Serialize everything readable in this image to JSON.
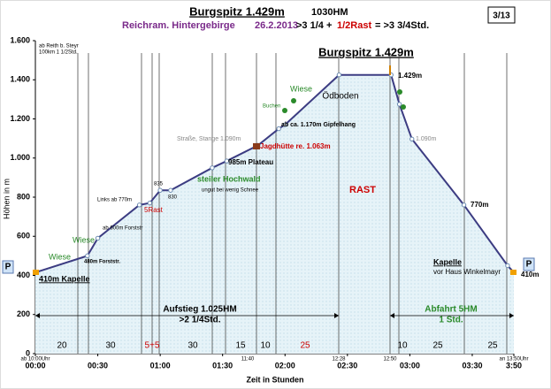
{
  "chart_data": {
    "type": "area",
    "header": {
      "title": "Burgspitz 1.429m",
      "hm": "1030HM",
      "region": "Reichram. Hintergebirge",
      "date": "26.2.2013",
      "time_a": ">3 1/4 +",
      "time_rest": "1/2Rast",
      "time_b": "= >3 3/4Std.",
      "page": "3/13"
    },
    "title": "Burgspitz 1.429m",
    "y_label": "Höhen in m",
    "x_label": "Zeit in Stunden",
    "x": [
      0,
      25,
      30,
      50,
      55,
      60,
      65,
      85,
      92,
      107,
      117,
      120,
      146,
      171,
      175,
      181,
      206,
      227,
      230
    ],
    "values": [
      415,
      500,
      590,
      760,
      770,
      835,
      835,
      950,
      985,
      1065,
      1150,
      1170,
      1425,
      1425,
      1275,
      1097,
      760,
      450,
      415
    ],
    "color": "#3c3c82",
    "fill": "#e4f2f8",
    "xlim": [
      0,
      230
    ],
    "xticks": [
      {
        "value": 0,
        "label": "00:00"
      },
      {
        "value": 30,
        "label": "00:30"
      },
      {
        "value": 60,
        "label": "01:00"
      },
      {
        "value": 90,
        "label": "01:30"
      },
      {
        "value": 120,
        "label": "02:00"
      },
      {
        "value": 150,
        "label": "02:30"
      },
      {
        "value": 180,
        "label": "03:00"
      },
      {
        "value": 210,
        "label": "03:30"
      },
      {
        "value": 230,
        "label": "3:50"
      }
    ],
    "ylim": [
      0,
      1600
    ],
    "yticks": [
      0,
      200,
      400,
      600,
      800,
      {
        "value": 1000,
        "label": "1.000"
      },
      {
        "value": 1200,
        "label": "1.200"
      },
      {
        "value": 1400,
        "label": "1.400"
      },
      {
        "value": 1600,
        "label": "1.600"
      }
    ],
    "grid": false,
    "annotations": [
      {
        "text": "ab Reith b. Steyr",
        "color": "#000"
      },
      {
        "text": "100km 1 1/2Std.",
        "color": "#000"
      },
      {
        "text": "410m Kapelle",
        "color": "#000"
      },
      {
        "text": "Wiese",
        "color": "#2a8a2a"
      },
      {
        "text": "480m Forststr.",
        "color": "#000"
      },
      {
        "text": "Wiese",
        "color": "#2a8a2a"
      },
      {
        "text": "ab 600m Forststr",
        "color": "#000"
      },
      {
        "text": "Links ab 770m",
        "color": "#000"
      },
      {
        "text": "5Rast",
        "color": "#cc0000"
      },
      {
        "text": "835",
        "color": "#000"
      },
      {
        "text": "830",
        "color": "#000"
      },
      {
        "text": "steiler Hochwald",
        "color": "#2a8a2a"
      },
      {
        "text": "ungut bei wenig Schnee",
        "color": "#000"
      },
      {
        "text": "985m Plateau",
        "color": "#000"
      },
      {
        "text": "Straße, Stange 1.090m",
        "color": "#888"
      },
      {
        "text": "Jagdhütte re. 1.063m",
        "color": "#cc0000"
      },
      {
        "text": "ab ca. 1.170m Gipfelhang",
        "color": "#000"
      },
      {
        "text": "Buchen",
        "color": "#2a8a2a"
      },
      {
        "text": "Wiese",
        "color": "#2a8a2a"
      },
      {
        "text": "Ödboden",
        "color": "#000"
      },
      {
        "text": "RAST",
        "color": "#cc0000"
      },
      {
        "text": "1.429m",
        "color": "#000"
      },
      {
        "text": "1.090m",
        "color": "#888"
      },
      {
        "text": "770m",
        "color": "#000"
      },
      {
        "text": "Kapelle",
        "color": "#000"
      },
      {
        "text": "vor Haus Winkelmayr",
        "color": "#000"
      },
      {
        "text": "410m",
        "color": "#000"
      },
      {
        "text": "Aufstieg 1.025HM",
        "color": "#000"
      },
      {
        "text": ">2 1/4Std.",
        "color": "#000"
      },
      {
        "text": "Abfahrt 5HM",
        "color": "#2a8a2a"
      },
      {
        "text": "1 Std.",
        "color": "#2a8a2a"
      },
      {
        "text": "P",
        "color": "#000"
      },
      {
        "text": "P",
        "color": "#000"
      }
    ],
    "segments": [
      {
        "text": "20",
        "color": "#000"
      },
      {
        "text": "30",
        "color": "#000"
      },
      {
        "text": "5+5",
        "color": "#cc0000"
      },
      {
        "text": "30",
        "color": "#000"
      },
      {
        "text": "15",
        "color": "#000"
      },
      {
        "text": "10",
        "color": "#000"
      },
      {
        "text": "25",
        "color": "#cc0000"
      },
      {
        "text": "10",
        "color": "#000"
      },
      {
        "text": "25",
        "color": "#000"
      },
      {
        "text": "25",
        "color": "#000"
      }
    ],
    "times": [
      "ab 10:00Uhr",
      "11:40",
      "12:28",
      "12:50",
      "an 13:50Uhr"
    ]
  }
}
